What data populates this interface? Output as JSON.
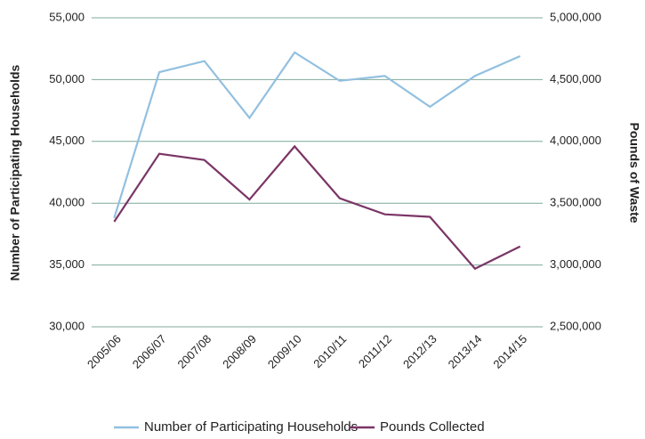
{
  "chart_data": {
    "type": "line",
    "y_label": "Number of Participating Households",
    "y2_label": "Pounds of Waste",
    "categories": [
      "2005/06",
      "2006/07",
      "2007/08",
      "2008/09",
      "2009/10",
      "2010/11",
      "2011/12",
      "2012/13",
      "2013/14",
      "2014/15"
    ],
    "series": [
      {
        "name": "Number of Participating Households",
        "color": "#92c0e0",
        "values": [
          38800,
          50600,
          51500,
          46900,
          52200,
          49900,
          50300,
          47800,
          50300,
          51900
        ]
      },
      {
        "name": "Pounds Collected",
        "color": "#7b3566",
        "axis": "y2",
        "values": [
          3350000,
          3900000,
          3850000,
          3530000,
          3960000,
          3540000,
          3410000,
          3390000,
          2970000,
          3150000
        ]
      }
    ],
    "ylim": [
      30000,
      55000
    ],
    "yticks": [
      {
        "value": 30000,
        "label": "30,000"
      },
      {
        "value": 35000,
        "label": "35,000"
      },
      {
        "value": 40000,
        "label": "40,000"
      },
      {
        "value": 45000,
        "label": "45,000"
      },
      {
        "value": 50000,
        "label": "50,000"
      },
      {
        "value": 55000,
        "label": "55,000"
      }
    ],
    "y2lim": [
      2500000,
      5000000
    ],
    "y2ticks": [
      {
        "value": 2500000,
        "label": "2,500,000"
      },
      {
        "value": 3000000,
        "label": "3,000,000"
      },
      {
        "value": 3500000,
        "label": "3,500,000"
      },
      {
        "value": 4000000,
        "label": "4,000,000"
      },
      {
        "value": 4500000,
        "label": "4,500,000"
      },
      {
        "value": 5000000,
        "label": "5,000,000"
      }
    ],
    "grid": true,
    "legend": "bottom"
  }
}
